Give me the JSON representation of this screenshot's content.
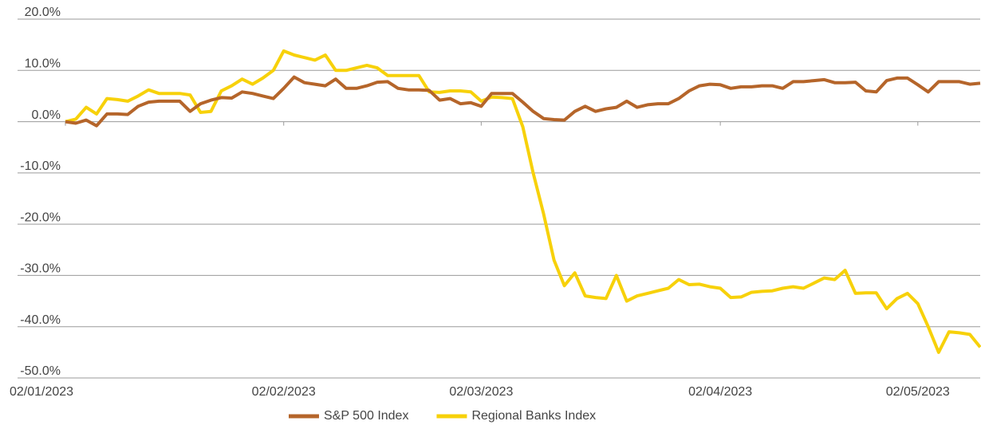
{
  "chart_data": {
    "type": "line",
    "categories": [
      "02/01/2023",
      null,
      null,
      null,
      null,
      null,
      null,
      null,
      null,
      null,
      null,
      null,
      null,
      null,
      null,
      null,
      null,
      null,
      null,
      null,
      null,
      "02/02/2023",
      null,
      null,
      null,
      null,
      null,
      null,
      null,
      null,
      null,
      null,
      null,
      null,
      null,
      null,
      null,
      null,
      null,
      null,
      "02/03/2023",
      null,
      null,
      null,
      null,
      null,
      null,
      null,
      null,
      null,
      null,
      null,
      null,
      null,
      null,
      null,
      null,
      null,
      null,
      null,
      null,
      null,
      null,
      "02/04/2023",
      null,
      null,
      null,
      null,
      null,
      null,
      null,
      null,
      null,
      null,
      null,
      null,
      null,
      null,
      null,
      null,
      null,
      null,
      "02/05/2023",
      null,
      null,
      null,
      null,
      null,
      null
    ],
    "series": [
      {
        "name": "S&P 500 Index",
        "color": "#b5652a",
        "values": [
          0,
          -0.3,
          0.3,
          -0.8,
          1.5,
          1.5,
          1.4,
          3,
          3.8,
          4,
          4,
          4,
          2,
          3.5,
          4.2,
          4.7,
          4.6,
          5.8,
          5.5,
          5,
          4.5,
          6.5,
          8.7,
          7.6,
          7.3,
          7,
          8.3,
          6.5,
          6.5,
          7,
          7.7,
          7.8,
          6.5,
          6.2,
          6.2,
          6.1,
          4.2,
          4.5,
          3.5,
          3.7,
          3,
          5.5,
          5.5,
          5.5,
          3.8,
          2,
          0.6,
          0.4,
          0.3,
          2,
          3,
          2,
          2.5,
          2.8,
          4,
          2.8,
          3.3,
          3.5,
          3.5,
          4.5,
          6,
          7,
          7.3,
          7.2,
          6.5,
          6.8,
          6.8,
          7,
          7,
          6.5,
          7.8,
          7.8,
          8,
          8.2,
          7.6,
          7.6,
          7.7,
          6,
          5.8,
          8,
          8.5,
          8.5,
          7.2,
          5.8,
          7.8,
          7.8,
          7.8,
          7.3,
          7.5
        ]
      },
      {
        "name": "Regional Banks Index",
        "color": "#f7d10a",
        "values": [
          0,
          0.5,
          2.8,
          1.5,
          4.5,
          4.3,
          4,
          5,
          6.2,
          5.5,
          5.5,
          5.5,
          5.2,
          1.8,
          2,
          6,
          7,
          8.3,
          7.3,
          8.5,
          10,
          13.8,
          13,
          12.5,
          12,
          13,
          10,
          10,
          10.5,
          11,
          10.5,
          9,
          9,
          9,
          9,
          5.8,
          5.7,
          6,
          6,
          5.8,
          4,
          4.8,
          4.7,
          4.5,
          -1,
          -10,
          -18,
          -27,
          -32,
          -29.5,
          -34,
          -34.3,
          -34.5,
          -30,
          -35,
          -34,
          -33.5,
          -33,
          -32.5,
          -30.8,
          -31.8,
          -31.7,
          -32.2,
          -32.5,
          -34.3,
          -34.2,
          -33.3,
          -33.1,
          -33,
          -32.5,
          -32.2,
          -32.5,
          -31.5,
          -30.5,
          -30.8,
          -29,
          -33.5,
          -33.4,
          -33.4,
          -36.5,
          -34.5,
          -33.5,
          -35.5,
          -40,
          -45,
          -41,
          -41.2,
          -41.5,
          -44
        ]
      }
    ],
    "ylim": [
      -50,
      20
    ],
    "yticks": [
      {
        "value": -50,
        "label": "-50.0%"
      },
      {
        "value": -40,
        "label": "-40.0%"
      },
      {
        "value": -30,
        "label": "-30.0%"
      },
      {
        "value": -20,
        "label": "-20.0%"
      },
      {
        "value": -10,
        "label": "-10.0%"
      },
      {
        "value": 0,
        "label": "0.0%"
      },
      {
        "value": 10,
        "label": "10.0%"
      },
      {
        "value": 20,
        "label": "20.0%"
      }
    ],
    "grid": true,
    "legend": "bottom"
  }
}
